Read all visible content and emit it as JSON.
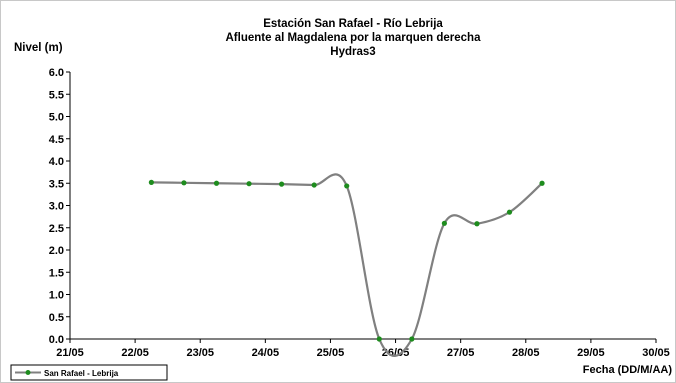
{
  "chart_data": {
    "type": "line",
    "title": "Estación San Rafael - Río Lebrija",
    "subtitle_lines": [
      "Afluente al Magdalena por la marquen derecha",
      "Hydras3"
    ],
    "ylabel": "Nivel (m)",
    "xlabel": "Fecha (DD/M/AA)",
    "ylim": [
      0,
      6
    ],
    "yticks": [
      "0.0",
      "0.5",
      "1.0",
      "1.5",
      "2.0",
      "2.5",
      "3.0",
      "3.5",
      "4.0",
      "4.5",
      "5.0",
      "5.5",
      "6.0"
    ],
    "xlim": [
      0,
      9
    ],
    "xticks": [
      "21/05",
      "22/05",
      "23/05",
      "24/05",
      "25/05",
      "26/05",
      "27/05",
      "28/05",
      "29/05",
      "30/05"
    ],
    "grid": false,
    "legend_position": "bottom-left",
    "series": [
      {
        "name": "San Rafael - Lebrija",
        "line_color": "#808080",
        "marker_color": "#1e8c1e",
        "x": [
          1.25,
          1.75,
          2.25,
          2.75,
          3.25,
          3.75,
          4.25,
          4.75,
          5.25,
          5.75,
          6.25,
          6.75,
          7.25
        ],
        "y": [
          3.52,
          3.51,
          3.5,
          3.49,
          3.48,
          3.46,
          3.44,
          0.0,
          0.0,
          2.6,
          2.59,
          2.85,
          3.5
        ]
      }
    ]
  }
}
